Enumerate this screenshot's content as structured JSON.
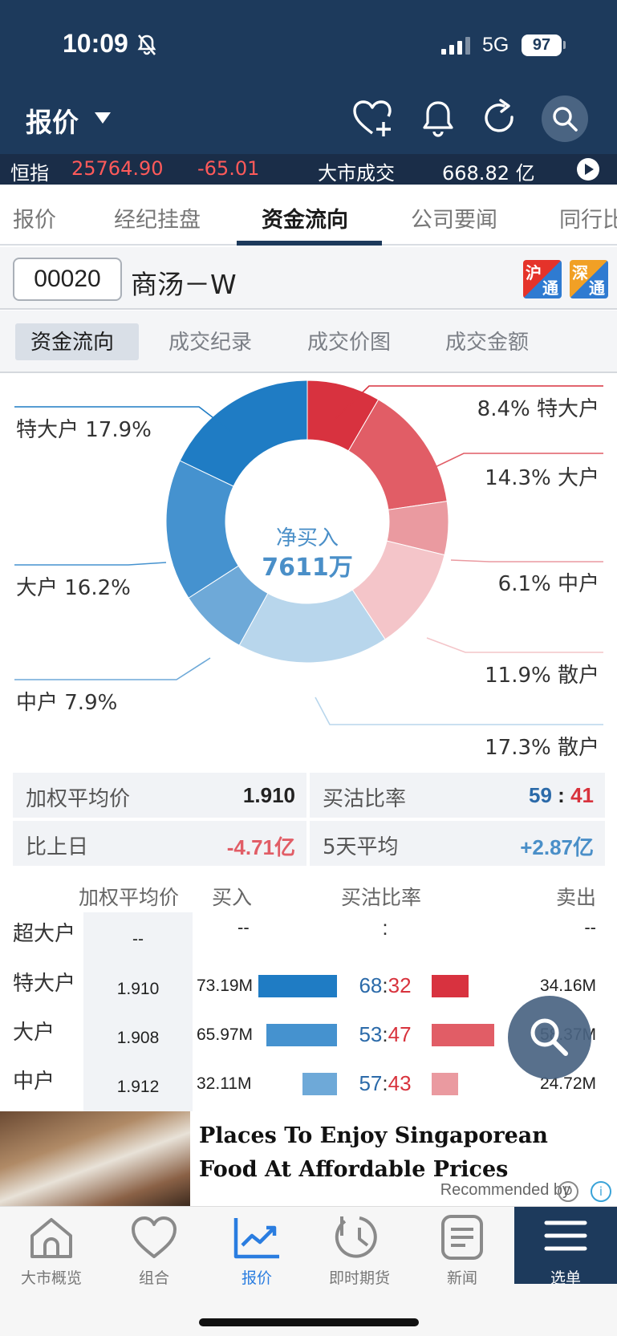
{
  "status_bar": {
    "time": "10:09",
    "network": "5G",
    "battery": "97"
  },
  "nav": {
    "title": "报价"
  },
  "ticker": {
    "index_label": "恒指",
    "index_value": "25764.90",
    "index_change": "-65.01",
    "turnover_label": "大市成交",
    "turnover_value": "668.82 亿"
  },
  "tabs": [
    "报价",
    "经纪挂盘",
    "资金流向",
    "公司要闻",
    "同行比"
  ],
  "stock": {
    "code": "00020",
    "name": "商汤－W",
    "sh_connect": [
      "沪",
      "通"
    ],
    "sz_connect": [
      "深",
      "通"
    ]
  },
  "subtabs": [
    "资金流向",
    "成交纪录",
    "成交价图",
    "成交金额"
  ],
  "donut": {
    "center_label": "净买入",
    "center_value": "7611万",
    "segments": [
      {
        "side": "sell",
        "pct": 8.4,
        "label": "8.4% 特大户",
        "color": "#d8323f"
      },
      {
        "side": "sell",
        "pct": 14.3,
        "label": "14.3% 大户",
        "color": "#e15d66"
      },
      {
        "side": "sell",
        "pct": 6.1,
        "label": "6.1% 中户",
        "color": "#ea9aa0"
      },
      {
        "side": "sell",
        "pct": 11.9,
        "label": "11.9% 散户",
        "color": "#f4c5c9"
      },
      {
        "side": "buy",
        "pct": 17.3,
        "label": "17.3% 散户",
        "color": "#b8d6ec"
      },
      {
        "side": "buy",
        "pct": 7.9,
        "label": "中户 7.9%",
        "color": "#6ea9d8"
      },
      {
        "side": "buy",
        "pct": 16.2,
        "label": "大户 16.2%",
        "color": "#4592cf"
      },
      {
        "side": "buy",
        "pct": 17.9,
        "label": "特大户 17.9%",
        "color": "#1f7cc4"
      }
    ]
  },
  "summary": {
    "wavg_label": "加权平均价",
    "wavg_value": "1.910",
    "ratio_label": "买沽比率",
    "ratio_buy": "59",
    "ratio_sep": ":",
    "ratio_sell": "41",
    "prev_label": "比上日",
    "prev_value": "-4.71亿",
    "avg5_label": "5天平均",
    "avg5_value": "+2.87亿"
  },
  "detail": {
    "headers": {
      "avg": "加权平均价",
      "buy": "买入",
      "ratio": "买沽比率",
      "sell": "卖出"
    },
    "rows": [
      {
        "label": "超大户",
        "avg": "--",
        "buy": "--",
        "ratio_buy": "",
        "sep": ":",
        "ratio_sell": "",
        "sell": "--",
        "buy_frac": 0,
        "sell_frac": 0
      },
      {
        "label": "特大户",
        "avg": "1.910",
        "buy": "73.19M",
        "ratio_buy": "68",
        "sep": ":",
        "ratio_sell": "32",
        "sell": "34.16M",
        "buy_frac": 1.0,
        "sell_frac": 0.467
      },
      {
        "label": "大户",
        "avg": "1.908",
        "buy": "65.97M",
        "ratio_buy": "53",
        "sep": ":",
        "ratio_sell": "47",
        "sell": "58.37M",
        "buy_frac": 0.901,
        "sell_frac": 0.797
      },
      {
        "label": "中户",
        "avg": "1.912",
        "buy": "32.11M",
        "ratio_buy": "57",
        "sep": ":",
        "ratio_sell": "43",
        "sell": "24.72M",
        "buy_frac": 0.439,
        "sell_frac": 0.338
      }
    ],
    "colors": {
      "buy": [
        "#1f7cc4",
        "#4592cf",
        "#6ea9d8"
      ],
      "sell": [
        "#d8323f",
        "#e15d66",
        "#ea9aa0"
      ]
    }
  },
  "ad": {
    "title": "Places To Enjoy Singaporean Food At Affordable Prices",
    "recommended": "Recommended by",
    "logo": "D",
    "info": "i"
  },
  "bottom_nav": [
    "大市概览",
    "组合",
    "报价",
    "即时期货",
    "新闻",
    "选单"
  ],
  "icons": [
    "bell-off-icon",
    "signal-icon",
    "heart-plus-icon",
    "bell-icon",
    "refresh-icon",
    "search-icon",
    "play-icon",
    "home-icon",
    "heart-icon",
    "chart-icon",
    "clock-icon",
    "news-icon",
    "menu-icon"
  ]
}
